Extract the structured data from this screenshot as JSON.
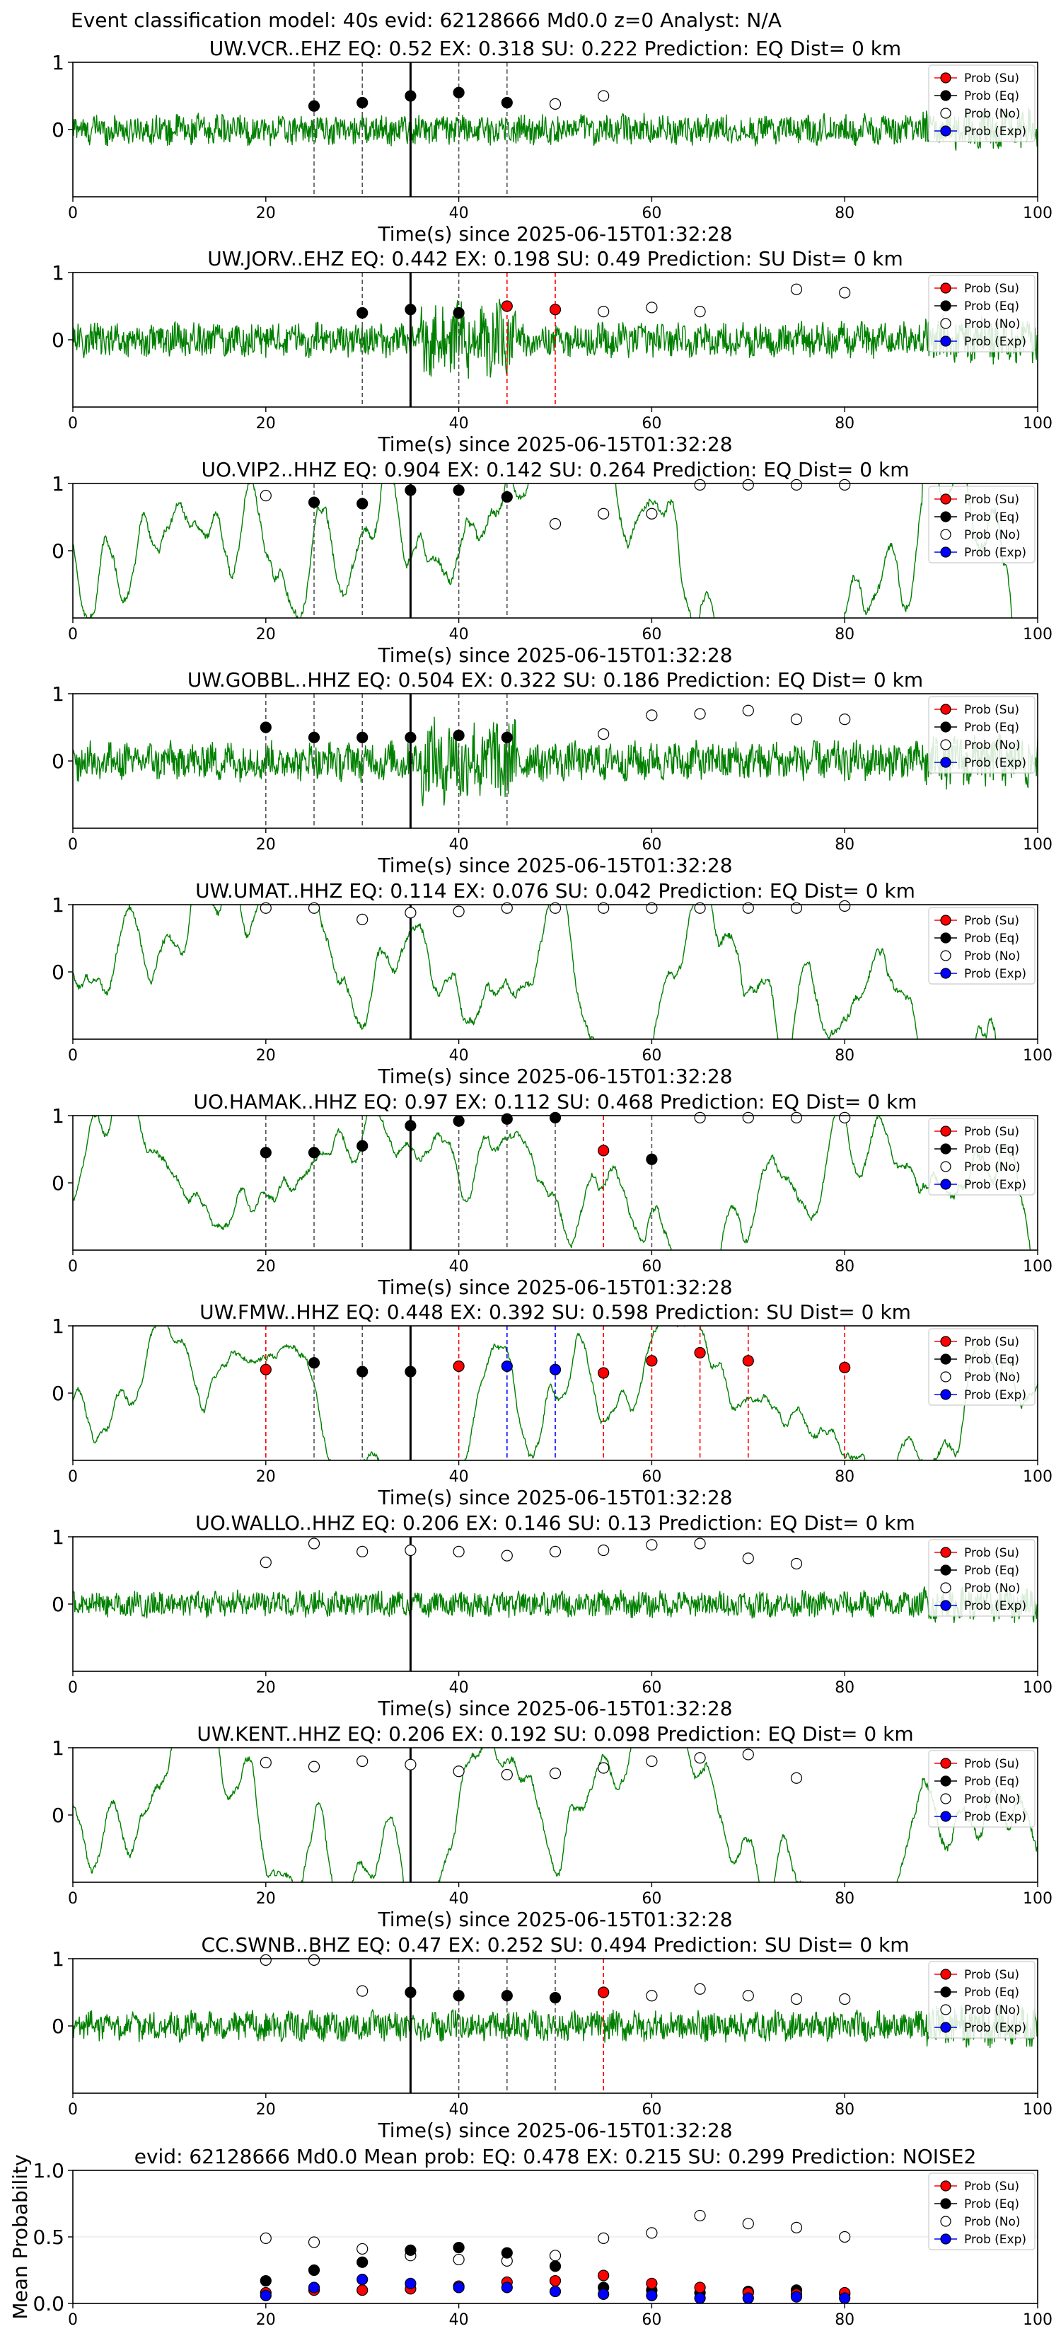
{
  "suptitle": "Event classification model: 40s evid: 62128666 Md0.0 z=0 Analyst: N/A",
  "colors": {
    "waveform": "#008000",
    "su": "#ff0000",
    "eq": "#000000",
    "no": "#ffffff",
    "exp": "#0000ff",
    "vline_su": "#ff0000",
    "vline_eq": "#555555",
    "vline_exp": "#0000ff",
    "origin_line": "#000000"
  },
  "legend_labels": [
    "Prob (Su)",
    "Prob (Eq)",
    "Prob (No)",
    "Prob (Exp)"
  ],
  "chart_data": [
    {
      "type": "scatter",
      "title": "UW.VCR..EHZ   EQ: 0.52  EX: 0.318  SU: 0.222   Prediction: EQ    Dist= 0 km",
      "xlabel": "Time(s) since 2025-06-15T01:32:28",
      "xlim": [
        0,
        100
      ],
      "ylim": [
        -1,
        1
      ],
      "xticks": [
        0,
        20,
        40,
        60,
        80,
        100
      ],
      "yticks": [
        0,
        1
      ],
      "origin": 35,
      "wave_amp": 0.35,
      "wave_style": "noisy",
      "points": [
        {
          "x": 25,
          "y": 0.35,
          "c": "eq"
        },
        {
          "x": 30,
          "y": 0.4,
          "c": "eq"
        },
        {
          "x": 35,
          "y": 0.5,
          "c": "eq"
        },
        {
          "x": 40,
          "y": 0.55,
          "c": "eq"
        },
        {
          "x": 45,
          "y": 0.4,
          "c": "eq"
        },
        {
          "x": 50,
          "y": 0.38,
          "c": "no"
        },
        {
          "x": 55,
          "y": 0.5,
          "c": "no"
        }
      ]
    },
    {
      "type": "scatter",
      "title": "UW.JORV..EHZ   EQ: 0.442  EX: 0.198  SU: 0.49   Prediction: SU    Dist= 0 km",
      "xlabel": "Time(s) since 2025-06-15T01:32:28",
      "xlim": [
        0,
        100
      ],
      "ylim": [
        -1,
        1
      ],
      "xticks": [
        0,
        20,
        40,
        60,
        80,
        100
      ],
      "yticks": [
        0,
        1
      ],
      "origin": 35,
      "wave_amp": 0.4,
      "wave_style": "burst",
      "points": [
        {
          "x": 30,
          "y": 0.4,
          "c": "eq"
        },
        {
          "x": 35,
          "y": 0.45,
          "c": "eq"
        },
        {
          "x": 40,
          "y": 0.4,
          "c": "eq"
        },
        {
          "x": 45,
          "y": 0.5,
          "c": "su"
        },
        {
          "x": 50,
          "y": 0.45,
          "c": "su"
        },
        {
          "x": 55,
          "y": 0.42,
          "c": "no"
        },
        {
          "x": 60,
          "y": 0.48,
          "c": "no"
        },
        {
          "x": 65,
          "y": 0.42,
          "c": "no"
        },
        {
          "x": 75,
          "y": 0.75,
          "c": "no"
        },
        {
          "x": 80,
          "y": 0.7,
          "c": "no"
        }
      ]
    },
    {
      "type": "scatter",
      "title": "UO.VIP2..HHZ   EQ: 0.904  EX: 0.142  SU: 0.264   Prediction: EQ    Dist= 0 km",
      "xlabel": "Time(s) since 2025-06-15T01:32:28",
      "xlim": [
        0,
        100
      ],
      "ylim": [
        -1,
        1
      ],
      "xticks": [
        0,
        20,
        40,
        60,
        80,
        100
      ],
      "yticks": [
        0,
        1
      ],
      "origin": 35,
      "wave_amp": 0.75,
      "wave_style": "smooth",
      "points": [
        {
          "x": 20,
          "y": 0.82,
          "c": "no"
        },
        {
          "x": 25,
          "y": 0.72,
          "c": "eq"
        },
        {
          "x": 30,
          "y": 0.7,
          "c": "eq"
        },
        {
          "x": 35,
          "y": 0.9,
          "c": "eq"
        },
        {
          "x": 40,
          "y": 0.9,
          "c": "eq"
        },
        {
          "x": 45,
          "y": 0.8,
          "c": "eq"
        },
        {
          "x": 50,
          "y": 0.4,
          "c": "no"
        },
        {
          "x": 55,
          "y": 0.55,
          "c": "no"
        },
        {
          "x": 60,
          "y": 0.55,
          "c": "no"
        },
        {
          "x": 65,
          "y": 0.98,
          "c": "no"
        },
        {
          "x": 70,
          "y": 0.98,
          "c": "no"
        },
        {
          "x": 75,
          "y": 0.98,
          "c": "no"
        },
        {
          "x": 80,
          "y": 0.98,
          "c": "no"
        }
      ]
    },
    {
      "type": "scatter",
      "title": "UW.GOBBL..HHZ   EQ: 0.504  EX: 0.322  SU: 0.186   Prediction: EQ    Dist= 0 km",
      "xlabel": "Time(s) since 2025-06-15T01:32:28",
      "xlim": [
        0,
        100
      ],
      "ylim": [
        -1,
        1
      ],
      "xticks": [
        0,
        20,
        40,
        60,
        80,
        100
      ],
      "yticks": [
        0,
        1
      ],
      "origin": 35,
      "wave_amp": 0.45,
      "wave_style": "burst",
      "points": [
        {
          "x": 20,
          "y": 0.5,
          "c": "eq"
        },
        {
          "x": 25,
          "y": 0.35,
          "c": "eq"
        },
        {
          "x": 30,
          "y": 0.35,
          "c": "eq"
        },
        {
          "x": 35,
          "y": 0.35,
          "c": "eq"
        },
        {
          "x": 40,
          "y": 0.38,
          "c": "eq"
        },
        {
          "x": 45,
          "y": 0.35,
          "c": "eq"
        },
        {
          "x": 55,
          "y": 0.4,
          "c": "no"
        },
        {
          "x": 60,
          "y": 0.68,
          "c": "no"
        },
        {
          "x": 65,
          "y": 0.7,
          "c": "no"
        },
        {
          "x": 70,
          "y": 0.75,
          "c": "no"
        },
        {
          "x": 75,
          "y": 0.62,
          "c": "no"
        },
        {
          "x": 80,
          "y": 0.62,
          "c": "no"
        }
      ]
    },
    {
      "type": "scatter",
      "title": "UW.UMAT..HHZ   EQ: 0.114  EX: 0.076  SU: 0.042   Prediction: EQ    Dist= 0 km",
      "xlabel": "Time(s) since 2025-06-15T01:32:28",
      "xlim": [
        0,
        100
      ],
      "ylim": [
        -1,
        1
      ],
      "xticks": [
        0,
        20,
        40,
        60,
        80,
        100
      ],
      "yticks": [
        0,
        1
      ],
      "origin": 35,
      "wave_amp": 0.65,
      "wave_style": "smooth",
      "points": [
        {
          "x": 20,
          "y": 0.95,
          "c": "no"
        },
        {
          "x": 25,
          "y": 0.95,
          "c": "no"
        },
        {
          "x": 30,
          "y": 0.78,
          "c": "no"
        },
        {
          "x": 35,
          "y": 0.88,
          "c": "no"
        },
        {
          "x": 40,
          "y": 0.9,
          "c": "no"
        },
        {
          "x": 45,
          "y": 0.95,
          "c": "no"
        },
        {
          "x": 50,
          "y": 0.95,
          "c": "no"
        },
        {
          "x": 55,
          "y": 0.95,
          "c": "no"
        },
        {
          "x": 60,
          "y": 0.95,
          "c": "no"
        },
        {
          "x": 65,
          "y": 0.95,
          "c": "no"
        },
        {
          "x": 70,
          "y": 0.95,
          "c": "no"
        },
        {
          "x": 75,
          "y": 0.95,
          "c": "no"
        },
        {
          "x": 80,
          "y": 0.98,
          "c": "no"
        }
      ]
    },
    {
      "type": "scatter",
      "title": "UO.HAMAK..HHZ   EQ: 0.97  EX: 0.112  SU: 0.468   Prediction: EQ    Dist= 0 km",
      "xlabel": "Time(s) since 2025-06-15T01:32:28",
      "xlim": [
        0,
        100
      ],
      "ylim": [
        -1,
        1
      ],
      "xticks": [
        0,
        20,
        40,
        60,
        80,
        100
      ],
      "yticks": [
        0,
        1
      ],
      "origin": 35,
      "wave_amp": 0.55,
      "wave_style": "smooth",
      "points": [
        {
          "x": 20,
          "y": 0.45,
          "c": "eq"
        },
        {
          "x": 25,
          "y": 0.45,
          "c": "eq"
        },
        {
          "x": 30,
          "y": 0.55,
          "c": "eq"
        },
        {
          "x": 35,
          "y": 0.85,
          "c": "eq"
        },
        {
          "x": 40,
          "y": 0.92,
          "c": "eq"
        },
        {
          "x": 45,
          "y": 0.95,
          "c": "eq"
        },
        {
          "x": 50,
          "y": 0.97,
          "c": "eq"
        },
        {
          "x": 55,
          "y": 0.48,
          "c": "su"
        },
        {
          "x": 60,
          "y": 0.35,
          "c": "eq"
        },
        {
          "x": 65,
          "y": 0.97,
          "c": "no"
        },
        {
          "x": 70,
          "y": 0.97,
          "c": "no"
        },
        {
          "x": 75,
          "y": 0.97,
          "c": "no"
        },
        {
          "x": 80,
          "y": 0.97,
          "c": "no"
        }
      ]
    },
    {
      "type": "scatter",
      "title": "UW.FMW..HHZ   EQ: 0.448  EX: 0.392  SU: 0.598   Prediction: SU    Dist= 0 km",
      "xlabel": "Time(s) since 2025-06-15T01:32:28",
      "xlim": [
        0,
        100
      ],
      "ylim": [
        -1,
        1
      ],
      "xticks": [
        0,
        20,
        40,
        60,
        80,
        100
      ],
      "yticks": [
        0,
        1
      ],
      "origin": 35,
      "wave_amp": 0.5,
      "wave_style": "smooth",
      "points": [
        {
          "x": 20,
          "y": 0.35,
          "c": "su"
        },
        {
          "x": 25,
          "y": 0.45,
          "c": "eq"
        },
        {
          "x": 30,
          "y": 0.32,
          "c": "eq"
        },
        {
          "x": 35,
          "y": 0.32,
          "c": "eq"
        },
        {
          "x": 40,
          "y": 0.4,
          "c": "su"
        },
        {
          "x": 45,
          "y": 0.4,
          "c": "exp"
        },
        {
          "x": 50,
          "y": 0.35,
          "c": "exp"
        },
        {
          "x": 55,
          "y": 0.3,
          "c": "su"
        },
        {
          "x": 60,
          "y": 0.48,
          "c": "su"
        },
        {
          "x": 65,
          "y": 0.6,
          "c": "su"
        },
        {
          "x": 70,
          "y": 0.48,
          "c": "su"
        },
        {
          "x": 80,
          "y": 0.38,
          "c": "su"
        }
      ]
    },
    {
      "type": "scatter",
      "title": "UO.WALLO..HHZ   EQ: 0.206  EX: 0.146  SU: 0.13   Prediction: EQ    Dist= 0 km",
      "xlabel": "Time(s) since 2025-06-15T01:32:28",
      "xlim": [
        0,
        100
      ],
      "ylim": [
        -1,
        1
      ],
      "xticks": [
        0,
        20,
        40,
        60,
        80,
        100
      ],
      "yticks": [
        0,
        1
      ],
      "origin": 35,
      "wave_amp": 0.3,
      "wave_style": "noisy",
      "points": [
        {
          "x": 20,
          "y": 0.62,
          "c": "no"
        },
        {
          "x": 25,
          "y": 0.9,
          "c": "no"
        },
        {
          "x": 30,
          "y": 0.78,
          "c": "no"
        },
        {
          "x": 35,
          "y": 0.8,
          "c": "no"
        },
        {
          "x": 40,
          "y": 0.78,
          "c": "no"
        },
        {
          "x": 45,
          "y": 0.72,
          "c": "no"
        },
        {
          "x": 50,
          "y": 0.78,
          "c": "no"
        },
        {
          "x": 55,
          "y": 0.8,
          "c": "no"
        },
        {
          "x": 60,
          "y": 0.88,
          "c": "no"
        },
        {
          "x": 65,
          "y": 0.9,
          "c": "no"
        },
        {
          "x": 70,
          "y": 0.68,
          "c": "no"
        },
        {
          "x": 75,
          "y": 0.6,
          "c": "no"
        }
      ]
    },
    {
      "type": "scatter",
      "title": "UW.KENT..HHZ   EQ: 0.206  EX: 0.192  SU: 0.098   Prediction: EQ    Dist= 0 km",
      "xlabel": "Time(s) since 2025-06-15T01:32:28",
      "xlim": [
        0,
        100
      ],
      "ylim": [
        -1,
        1
      ],
      "xticks": [
        0,
        20,
        40,
        60,
        80,
        100
      ],
      "yticks": [
        0,
        1
      ],
      "origin": 35,
      "wave_amp": 0.6,
      "wave_style": "smooth",
      "points": [
        {
          "x": 20,
          "y": 0.78,
          "c": "no"
        },
        {
          "x": 25,
          "y": 0.72,
          "c": "no"
        },
        {
          "x": 30,
          "y": 0.8,
          "c": "no"
        },
        {
          "x": 35,
          "y": 0.75,
          "c": "no"
        },
        {
          "x": 40,
          "y": 0.65,
          "c": "no"
        },
        {
          "x": 45,
          "y": 0.6,
          "c": "no"
        },
        {
          "x": 50,
          "y": 0.62,
          "c": "no"
        },
        {
          "x": 55,
          "y": 0.7,
          "c": "no"
        },
        {
          "x": 60,
          "y": 0.8,
          "c": "no"
        },
        {
          "x": 65,
          "y": 0.85,
          "c": "no"
        },
        {
          "x": 70,
          "y": 0.9,
          "c": "no"
        },
        {
          "x": 75,
          "y": 0.55,
          "c": "no"
        }
      ]
    },
    {
      "type": "scatter",
      "title": "CC.SWNB..BHZ   EQ: 0.47  EX: 0.252  SU: 0.494   Prediction: SU    Dist= 0 km",
      "xlabel": "Time(s) since 2025-06-15T01:32:28",
      "xlim": [
        0,
        100
      ],
      "ylim": [
        -1,
        1
      ],
      "xticks": [
        0,
        20,
        40,
        60,
        80,
        100
      ],
      "yticks": [
        0,
        1
      ],
      "origin": 35,
      "wave_amp": 0.35,
      "wave_style": "noisy",
      "points": [
        {
          "x": 20,
          "y": 0.98,
          "c": "no"
        },
        {
          "x": 25,
          "y": 0.98,
          "c": "no"
        },
        {
          "x": 30,
          "y": 0.52,
          "c": "no"
        },
        {
          "x": 35,
          "y": 0.5,
          "c": "eq"
        },
        {
          "x": 40,
          "y": 0.45,
          "c": "eq"
        },
        {
          "x": 45,
          "y": 0.45,
          "c": "eq"
        },
        {
          "x": 50,
          "y": 0.42,
          "c": "eq"
        },
        {
          "x": 55,
          "y": 0.5,
          "c": "su"
        },
        {
          "x": 60,
          "y": 0.45,
          "c": "no"
        },
        {
          "x": 65,
          "y": 0.55,
          "c": "no"
        },
        {
          "x": 70,
          "y": 0.45,
          "c": "no"
        },
        {
          "x": 75,
          "y": 0.4,
          "c": "no"
        },
        {
          "x": 80,
          "y": 0.4,
          "c": "no"
        }
      ]
    },
    {
      "type": "scatter",
      "title": "evid: 62128666  Md0.0   Mean prob:   EQ: 0.478  EX: 0.215  SU: 0.299   Prediction: NOISE2",
      "xlabel": "",
      "ylabel": "Mean Probability",
      "xlim": [
        0,
        100
      ],
      "ylim": [
        0,
        1
      ],
      "xticks": [
        0,
        20,
        40,
        60,
        80,
        100
      ],
      "yticks": [
        0.0,
        0.5,
        1.0
      ],
      "ytick_labels": [
        "0.0",
        "0.5",
        "1.0"
      ],
      "grid": true,
      "points": [
        {
          "x": 20,
          "y": 0.49,
          "c": "no"
        },
        {
          "x": 25,
          "y": 0.46,
          "c": "no"
        },
        {
          "x": 30,
          "y": 0.41,
          "c": "no"
        },
        {
          "x": 35,
          "y": 0.36,
          "c": "no"
        },
        {
          "x": 40,
          "y": 0.33,
          "c": "no"
        },
        {
          "x": 45,
          "y": 0.32,
          "c": "no"
        },
        {
          "x": 50,
          "y": 0.36,
          "c": "no"
        },
        {
          "x": 55,
          "y": 0.49,
          "c": "no"
        },
        {
          "x": 60,
          "y": 0.53,
          "c": "no"
        },
        {
          "x": 65,
          "y": 0.66,
          "c": "no"
        },
        {
          "x": 70,
          "y": 0.6,
          "c": "no"
        },
        {
          "x": 75,
          "y": 0.57,
          "c": "no"
        },
        {
          "x": 80,
          "y": 0.5,
          "c": "no"
        },
        {
          "x": 20,
          "y": 0.17,
          "c": "eq"
        },
        {
          "x": 25,
          "y": 0.25,
          "c": "eq"
        },
        {
          "x": 30,
          "y": 0.31,
          "c": "eq"
        },
        {
          "x": 35,
          "y": 0.4,
          "c": "eq"
        },
        {
          "x": 40,
          "y": 0.42,
          "c": "eq"
        },
        {
          "x": 45,
          "y": 0.38,
          "c": "eq"
        },
        {
          "x": 50,
          "y": 0.28,
          "c": "eq"
        },
        {
          "x": 55,
          "y": 0.12,
          "c": "eq"
        },
        {
          "x": 60,
          "y": 0.1,
          "c": "eq"
        },
        {
          "x": 65,
          "y": 0.08,
          "c": "eq"
        },
        {
          "x": 70,
          "y": 0.09,
          "c": "eq"
        },
        {
          "x": 75,
          "y": 0.1,
          "c": "eq"
        },
        {
          "x": 80,
          "y": 0.07,
          "c": "eq"
        },
        {
          "x": 20,
          "y": 0.08,
          "c": "su"
        },
        {
          "x": 25,
          "y": 0.1,
          "c": "su"
        },
        {
          "x": 30,
          "y": 0.1,
          "c": "su"
        },
        {
          "x": 35,
          "y": 0.11,
          "c": "su"
        },
        {
          "x": 40,
          "y": 0.13,
          "c": "su"
        },
        {
          "x": 45,
          "y": 0.16,
          "c": "su"
        },
        {
          "x": 50,
          "y": 0.17,
          "c": "su"
        },
        {
          "x": 55,
          "y": 0.21,
          "c": "su"
        },
        {
          "x": 60,
          "y": 0.15,
          "c": "su"
        },
        {
          "x": 65,
          "y": 0.12,
          "c": "su"
        },
        {
          "x": 70,
          "y": 0.08,
          "c": "su"
        },
        {
          "x": 75,
          "y": 0.07,
          "c": "su"
        },
        {
          "x": 80,
          "y": 0.08,
          "c": "su"
        },
        {
          "x": 20,
          "y": 0.06,
          "c": "exp"
        },
        {
          "x": 25,
          "y": 0.12,
          "c": "exp"
        },
        {
          "x": 30,
          "y": 0.18,
          "c": "exp"
        },
        {
          "x": 35,
          "y": 0.15,
          "c": "exp"
        },
        {
          "x": 40,
          "y": 0.12,
          "c": "exp"
        },
        {
          "x": 45,
          "y": 0.12,
          "c": "exp"
        },
        {
          "x": 50,
          "y": 0.09,
          "c": "exp"
        },
        {
          "x": 55,
          "y": 0.07,
          "c": "exp"
        },
        {
          "x": 60,
          "y": 0.06,
          "c": "exp"
        },
        {
          "x": 65,
          "y": 0.04,
          "c": "exp"
        },
        {
          "x": 70,
          "y": 0.04,
          "c": "exp"
        },
        {
          "x": 75,
          "y": 0.05,
          "c": "exp"
        },
        {
          "x": 80,
          "y": 0.04,
          "c": "exp"
        }
      ]
    }
  ]
}
